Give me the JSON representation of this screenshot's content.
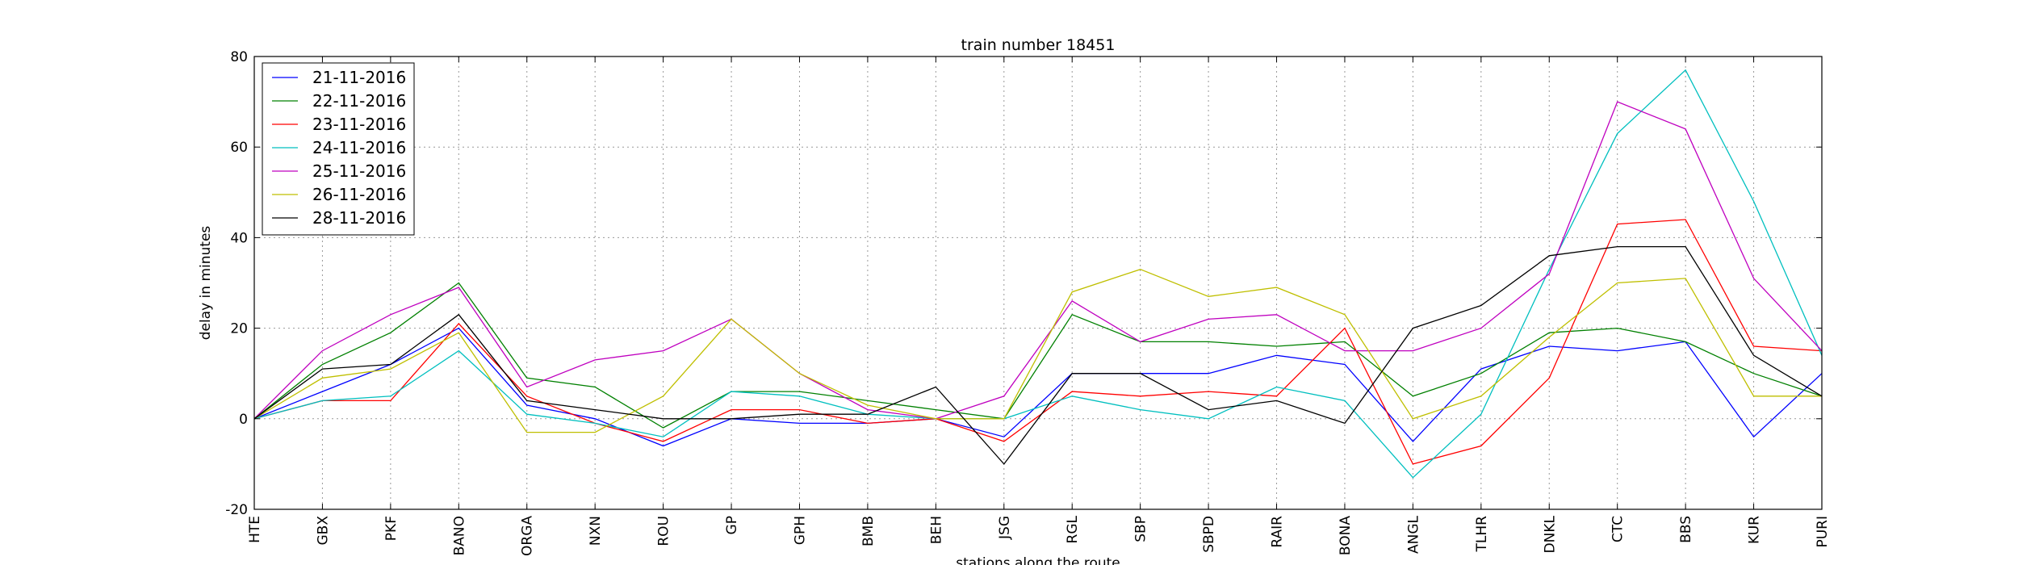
{
  "chart_data": {
    "type": "line",
    "title": "train number 18451",
    "xlabel": "stations along the route",
    "ylabel": "delay in minutes",
    "ylim": [
      -20,
      80
    ],
    "yticks": [
      -20,
      0,
      20,
      40,
      60,
      80
    ],
    "grid": true,
    "legend_position": "top-left",
    "categories": [
      "HTE",
      "GBX",
      "PKF",
      "BANO",
      "ORGA",
      "NXN",
      "ROU",
      "GP",
      "GPH",
      "BMB",
      "BEH",
      "JSG",
      "RGL",
      "SBP",
      "SBPD",
      "RAIR",
      "BONA",
      "ANGL",
      "TLHR",
      "DNKL",
      "CTC",
      "BBS",
      "KUR",
      "PURI"
    ],
    "series": [
      {
        "name": "21-11-2016",
        "color": "#0000ff",
        "values": [
          0,
          6,
          12,
          20,
          3,
          0,
          -6,
          0,
          -1,
          -1,
          0,
          -4,
          10,
          10,
          10,
          14,
          12,
          -5,
          11,
          16,
          15,
          17,
          -4,
          10
        ]
      },
      {
        "name": "22-11-2016",
        "color": "#008000",
        "values": [
          0,
          12,
          19,
          30,
          9,
          7,
          -2,
          6,
          6,
          4,
          2,
          0,
          23,
          17,
          17,
          16,
          17,
          5,
          10,
          19,
          20,
          17,
          10,
          5
        ]
      },
      {
        "name": "23-11-2016",
        "color": "#ff0000",
        "values": [
          0,
          4,
          4,
          21,
          5,
          -1,
          -5,
          2,
          2,
          -1,
          0,
          -5,
          6,
          5,
          6,
          5,
          20,
          -10,
          -6,
          9,
          43,
          44,
          16,
          15
        ]
      },
      {
        "name": "24-11-2016",
        "color": "#00bfbf",
        "values": [
          0,
          4,
          5,
          15,
          1,
          -1,
          -4,
          6,
          5,
          1,
          0,
          0,
          5,
          2,
          0,
          7,
          4,
          -13,
          1,
          33,
          63,
          77,
          48,
          14
        ]
      },
      {
        "name": "25-11-2016",
        "color": "#bf00bf",
        "values": [
          0,
          15,
          23,
          29,
          7,
          13,
          15,
          22,
          10,
          2,
          0,
          5,
          26,
          17,
          22,
          23,
          15,
          15,
          20,
          32,
          70,
          64,
          31,
          15
        ]
      },
      {
        "name": "26-11-2016",
        "color": "#bfbf00",
        "values": [
          0,
          9,
          11,
          19,
          -3,
          -3,
          5,
          22,
          10,
          3,
          0,
          0,
          28,
          33,
          27,
          29,
          23,
          0,
          5,
          18,
          30,
          31,
          5,
          5
        ]
      },
      {
        "name": "28-11-2016",
        "color": "#000000",
        "values": [
          0,
          11,
          12,
          23,
          4,
          2,
          0,
          0,
          1,
          1,
          7,
          -10,
          10,
          10,
          2,
          4,
          -1,
          20,
          25,
          36,
          38,
          38,
          14,
          5
        ]
      }
    ]
  }
}
